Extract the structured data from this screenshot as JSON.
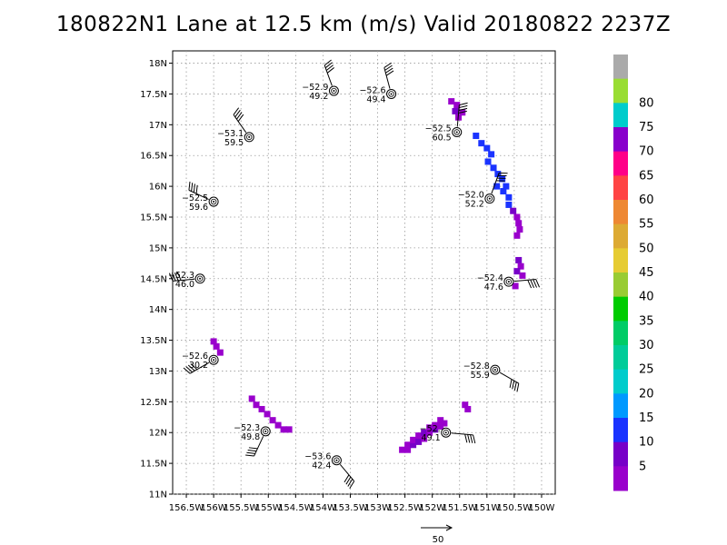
{
  "title": "180822N1 Lane at 12.5 km (m/s) Valid 20180822  2237Z",
  "chart_data": {
    "type": "scatter",
    "title": "180822N1 Lane at 12.5 km (m/s) Valid 20180822  2237Z",
    "xlim": [
      -156.75,
      -149.75
    ],
    "ylim": [
      11.0,
      18.2
    ],
    "grid": true,
    "x_ticks": [
      {
        "v": -156.5,
        "label": "156.5W"
      },
      {
        "v": -156,
        "label": "156W"
      },
      {
        "v": -155.5,
        "label": "155.5W"
      },
      {
        "v": -155,
        "label": "155W"
      },
      {
        "v": -154.5,
        "label": "154.5W"
      },
      {
        "v": -154,
        "label": "154W"
      },
      {
        "v": -153.5,
        "label": "153.5W"
      },
      {
        "v": -153,
        "label": "153W"
      },
      {
        "v": -152.5,
        "label": "152.5W"
      },
      {
        "v": -152,
        "label": "152W"
      },
      {
        "v": -151.5,
        "label": "151.5W"
      },
      {
        "v": -151,
        "label": "151W"
      },
      {
        "v": -150.5,
        "label": "150.5W"
      },
      {
        "v": -150,
        "label": "150W"
      }
    ],
    "y_ticks": [
      {
        "v": 11,
        "label": "11N"
      },
      {
        "v": 11.5,
        "label": "11.5N"
      },
      {
        "v": 12,
        "label": "12N"
      },
      {
        "v": 12.5,
        "label": "12.5N"
      },
      {
        "v": 13,
        "label": "13N"
      },
      {
        "v": 13.5,
        "label": "13.5N"
      },
      {
        "v": 14,
        "label": "14N"
      },
      {
        "v": 14.5,
        "label": "14.5N"
      },
      {
        "v": 15,
        "label": "15N"
      },
      {
        "v": 15.5,
        "label": "15.5N"
      },
      {
        "v": 16,
        "label": "16N"
      },
      {
        "v": 16.5,
        "label": "16.5N"
      },
      {
        "v": 17,
        "label": "17N"
      },
      {
        "v": 17.5,
        "label": "17.5N"
      },
      {
        "v": 18,
        "label": "18N"
      }
    ],
    "observations": [
      {
        "lon": -153.8,
        "lat": 17.55,
        "t": "−52.9",
        "ws": "49.2",
        "dir": 340,
        "kt": 95
      },
      {
        "lon": -152.75,
        "lat": 17.5,
        "t": "−52.6",
        "ws": "49.4",
        "dir": 345,
        "kt": 96
      },
      {
        "lon": -155.35,
        "lat": 16.8,
        "t": "−53.1",
        "ws": "59.5",
        "dir": 325,
        "kt": 115
      },
      {
        "lon": -151.55,
        "lat": 16.88,
        "t": "−52.5",
        "ws": "60.5",
        "dir": 5,
        "kt": 118
      },
      {
        "lon": -156.0,
        "lat": 15.75,
        "t": "−52.5",
        "ws": "59.6",
        "dir": 295,
        "kt": 115
      },
      {
        "lon": -150.95,
        "lat": 15.8,
        "t": "−52.0",
        "ws": "52.2",
        "dir": 20,
        "kt": 101
      },
      {
        "lon": -156.25,
        "lat": 14.5,
        "t": "−52.3",
        "ws": "46.0",
        "dir": 265,
        "kt": 90
      },
      {
        "lon": -150.6,
        "lat": 14.45,
        "t": "−52.4",
        "ws": "47.6",
        "dir": 85,
        "kt": 92
      },
      {
        "lon": -156.0,
        "lat": 13.18,
        "t": "−52.6",
        "ws": "30.2",
        "dir": 240,
        "kt": 58
      },
      {
        "lon": -150.85,
        "lat": 13.02,
        "t": "−52.8",
        "ws": "55.9",
        "dir": 120,
        "kt": 108
      },
      {
        "lon": -155.05,
        "lat": 12.02,
        "t": "−52.3",
        "ws": "49.8",
        "dir": 205,
        "kt": 97
      },
      {
        "lon": -151.75,
        "lat": 12.0,
        "t": "−52.",
        "ws": "49.1",
        "dir": 95,
        "kt": 95
      },
      {
        "lon": -153.75,
        "lat": 11.55,
        "t": "−53.6",
        "ws": "42.4",
        "dir": 140,
        "kt": 82
      }
    ],
    "wind_pixels": [
      {
        "lon": -151.65,
        "lat": 17.38,
        "v": 3,
        "c": "#9900cc"
      },
      {
        "lon": -151.55,
        "lat": 17.32,
        "v": 3,
        "c": "#9900cc"
      },
      {
        "lon": -151.45,
        "lat": 17.2,
        "v": 3,
        "c": "#9900cc"
      },
      {
        "lon": -151.52,
        "lat": 17.12,
        "v": 3,
        "c": "#9900cc"
      },
      {
        "lon": -151.58,
        "lat": 17.22,
        "v": 7,
        "c": "#7700c8"
      },
      {
        "lon": -151.2,
        "lat": 16.82,
        "v": 12,
        "c": "#1a33ff"
      },
      {
        "lon": -151.1,
        "lat": 16.7,
        "v": 12,
        "c": "#1a33ff"
      },
      {
        "lon": -151.0,
        "lat": 16.62,
        "v": 12,
        "c": "#1a33ff"
      },
      {
        "lon": -150.92,
        "lat": 16.52,
        "v": 12,
        "c": "#1a33ff"
      },
      {
        "lon": -150.98,
        "lat": 16.4,
        "v": 12,
        "c": "#1a33ff"
      },
      {
        "lon": -150.88,
        "lat": 16.3,
        "v": 12,
        "c": "#1a33ff"
      },
      {
        "lon": -150.8,
        "lat": 16.2,
        "v": 12,
        "c": "#1a33ff"
      },
      {
        "lon": -150.72,
        "lat": 16.12,
        "v": 12,
        "c": "#1a33ff"
      },
      {
        "lon": -150.65,
        "lat": 16.0,
        "v": 12,
        "c": "#1a33ff"
      },
      {
        "lon": -150.82,
        "lat": 16.0,
        "v": 12,
        "c": "#1a33ff"
      },
      {
        "lon": -150.7,
        "lat": 15.92,
        "v": 12,
        "c": "#1a33ff"
      },
      {
        "lon": -150.6,
        "lat": 15.82,
        "v": 12,
        "c": "#1a33ff"
      },
      {
        "lon": -150.6,
        "lat": 15.7,
        "v": 12,
        "c": "#1a33ff"
      },
      {
        "lon": -150.52,
        "lat": 15.6,
        "v": 7,
        "c": "#7700c8"
      },
      {
        "lon": -150.45,
        "lat": 15.5,
        "v": 3,
        "c": "#9900cc"
      },
      {
        "lon": -150.42,
        "lat": 15.4,
        "v": 3,
        "c": "#9900cc"
      },
      {
        "lon": -150.4,
        "lat": 15.3,
        "v": 3,
        "c": "#9900cc"
      },
      {
        "lon": -150.45,
        "lat": 15.2,
        "v": 3,
        "c": "#9900cc"
      },
      {
        "lon": -150.42,
        "lat": 14.8,
        "v": 7,
        "c": "#7700c8"
      },
      {
        "lon": -150.38,
        "lat": 14.7,
        "v": 3,
        "c": "#9900cc"
      },
      {
        "lon": -150.45,
        "lat": 14.62,
        "v": 7,
        "c": "#7700c8"
      },
      {
        "lon": -150.35,
        "lat": 14.55,
        "v": 3,
        "c": "#9900cc"
      },
      {
        "lon": -150.48,
        "lat": 14.38,
        "v": 3,
        "c": "#9900cc"
      },
      {
        "lon": -156.0,
        "lat": 13.48,
        "v": 3,
        "c": "#9900cc"
      },
      {
        "lon": -155.95,
        "lat": 13.4,
        "v": 3,
        "c": "#9900cc"
      },
      {
        "lon": -155.88,
        "lat": 13.3,
        "v": 3,
        "c": "#9900cc"
      },
      {
        "lon": -155.3,
        "lat": 12.55,
        "v": 3,
        "c": "#9900cc"
      },
      {
        "lon": -155.22,
        "lat": 12.45,
        "v": 3,
        "c": "#9900cc"
      },
      {
        "lon": -155.12,
        "lat": 12.38,
        "v": 3,
        "c": "#9900cc"
      },
      {
        "lon": -155.02,
        "lat": 12.3,
        "v": 3,
        "c": "#9900cc"
      },
      {
        "lon": -154.92,
        "lat": 12.2,
        "v": 3,
        "c": "#9900cc"
      },
      {
        "lon": -154.82,
        "lat": 12.12,
        "v": 3,
        "c": "#9900cc"
      },
      {
        "lon": -154.72,
        "lat": 12.05,
        "v": 3,
        "c": "#9900cc"
      },
      {
        "lon": -154.62,
        "lat": 12.05,
        "v": 3,
        "c": "#9900cc"
      },
      {
        "lon": -151.4,
        "lat": 12.45,
        "v": 3,
        "c": "#9900cc"
      },
      {
        "lon": -151.35,
        "lat": 12.38,
        "v": 3,
        "c": "#9900cc"
      },
      {
        "lon": -152.55,
        "lat": 11.72,
        "v": 3,
        "c": "#9900cc"
      },
      {
        "lon": -152.45,
        "lat": 11.72,
        "v": 3,
        "c": "#9900cc"
      },
      {
        "lon": -152.45,
        "lat": 11.8,
        "v": 3,
        "c": "#9900cc"
      },
      {
        "lon": -152.35,
        "lat": 11.8,
        "v": 7,
        "c": "#7700c8"
      },
      {
        "lon": -152.35,
        "lat": 11.88,
        "v": 3,
        "c": "#9900cc"
      },
      {
        "lon": -152.25,
        "lat": 11.85,
        "v": 7,
        "c": "#7700c8"
      },
      {
        "lon": -152.25,
        "lat": 11.95,
        "v": 3,
        "c": "#9900cc"
      },
      {
        "lon": -152.15,
        "lat": 11.9,
        "v": 3,
        "c": "#9900cc"
      },
      {
        "lon": -152.15,
        "lat": 12.0,
        "v": 7,
        "c": "#7700c8"
      },
      {
        "lon": -152.05,
        "lat": 12.0,
        "v": 3,
        "c": "#9900cc"
      },
      {
        "lon": -152.05,
        "lat": 12.08,
        "v": 3,
        "c": "#9900cc"
      },
      {
        "lon": -151.95,
        "lat": 12.05,
        "v": 7,
        "c": "#7700c8"
      },
      {
        "lon": -151.95,
        "lat": 12.12,
        "v": 3,
        "c": "#9900cc"
      },
      {
        "lon": -151.85,
        "lat": 12.1,
        "v": 3,
        "c": "#9900cc"
      },
      {
        "lon": -151.85,
        "lat": 12.2,
        "v": 3,
        "c": "#9900cc"
      },
      {
        "lon": -151.78,
        "lat": 12.15,
        "v": 3,
        "c": "#9900cc"
      }
    ],
    "colorbar": {
      "min": 0,
      "max": 85,
      "labels": [
        "5",
        "10",
        "15",
        "20",
        "25",
        "30",
        "35",
        "40",
        "45",
        "50",
        "55",
        "60",
        "65",
        "70",
        "75",
        "80"
      ],
      "colors": [
        "#9900cc",
        "#7700c8",
        "#1a33ff",
        "#0099ff",
        "#00cccc",
        "#00cc99",
        "#00cc66",
        "#00cc00",
        "#99cc33",
        "#e6cc33",
        "#ddaa33",
        "#ee8833",
        "#ff4444",
        "#ff0088",
        "#8800cc",
        "#00cccc",
        "#99dd33",
        "#aaaaaa"
      ]
    },
    "scale_arrow": {
      "label": "50"
    }
  }
}
